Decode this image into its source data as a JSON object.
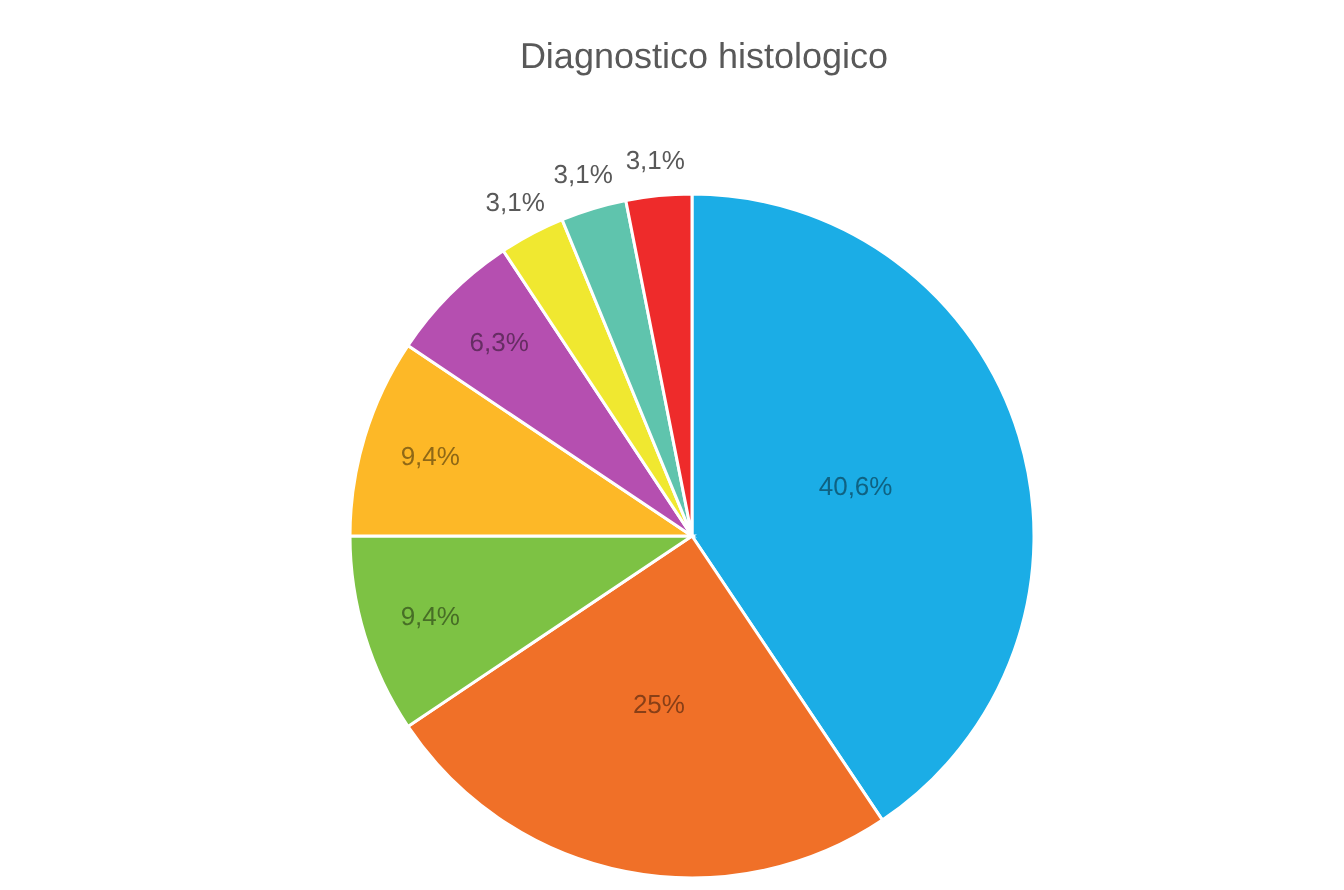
{
  "chart_data": {
    "type": "pie",
    "title": "Diagnostico histologico",
    "categories": [
      null,
      null,
      null,
      null,
      null,
      null,
      null,
      null
    ],
    "values": [
      40.6,
      25,
      9.4,
      9.4,
      6.3,
      3.1,
      3.1,
      3.1
    ],
    "colors": [
      "#1badE6",
      "#f07028",
      "#7dc244",
      "#fdb827",
      "#b54fb0",
      "#f0e830",
      "#5fc4ad",
      "#ee2b2b"
    ],
    "value_labels": [
      "40,6%",
      "25%",
      "9,4%",
      "9,4%",
      "6,3%",
      "3,1%",
      "3,1%",
      "3,1%"
    ]
  }
}
